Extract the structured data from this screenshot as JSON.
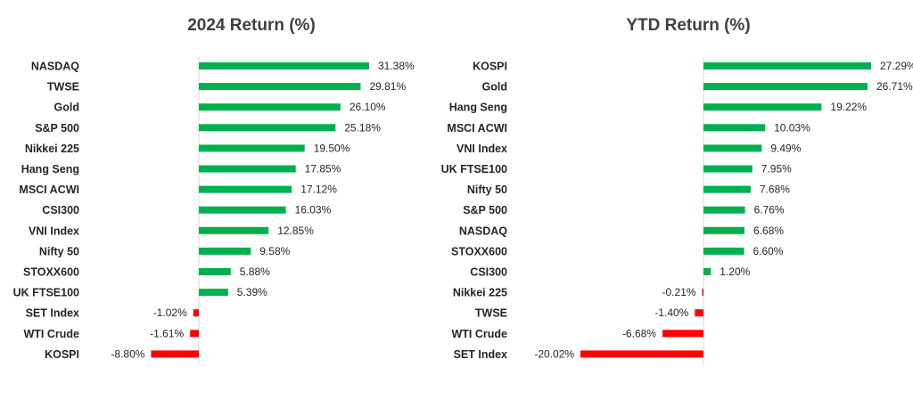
{
  "colors": {
    "positive": "#00b050",
    "negative": "#ff0000"
  },
  "chart_data": [
    {
      "type": "bar",
      "orientation": "horizontal",
      "title": "2024 Return (%)",
      "categories": [
        "NASDAQ",
        "TWSE",
        "Gold",
        "S&P 500",
        "Nikkei 225",
        "Hang Seng",
        "MSCI ACWI",
        "CSI300",
        "VNI Index",
        "Nifty 50",
        "STOXX600",
        "UK FTSE100",
        "SET Index",
        "WTI Crude",
        "KOSPI"
      ],
      "values": [
        31.38,
        29.81,
        26.1,
        25.18,
        19.5,
        17.85,
        17.12,
        16.03,
        12.85,
        9.58,
        5.88,
        5.39,
        -1.02,
        -1.61,
        -8.8
      ],
      "labels": [
        "31.38%",
        "29.81%",
        "26.10%",
        "25.18%",
        "19.50%",
        "17.85%",
        "17.12%",
        "16.03%",
        "12.85%",
        "9.58%",
        "5.88%",
        "5.39%",
        "-1.02%",
        "-1.61%",
        "-8.80%"
      ],
      "grid": false,
      "legend": "none"
    },
    {
      "type": "bar",
      "orientation": "horizontal",
      "title": "YTD Return (%)",
      "categories": [
        "KOSPI",
        "Gold",
        "Hang Seng",
        "MSCI ACWI",
        "VNI Index",
        "UK FTSE100",
        "Nifty 50",
        "S&P 500",
        "NASDAQ",
        "STOXX600",
        "CSI300",
        "Nikkei 225",
        "TWSE",
        "WTI Crude",
        "SET Index"
      ],
      "values": [
        27.29,
        26.71,
        19.22,
        10.03,
        9.49,
        7.95,
        7.68,
        6.76,
        6.68,
        6.6,
        1.2,
        -0.21,
        -1.4,
        -6.68,
        -20.02
      ],
      "labels": [
        "27.29%",
        "26.71%",
        "19.22%",
        "10.03%",
        "9.49%",
        "7.95%",
        "7.68%",
        "6.76%",
        "6.68%",
        "6.60%",
        "1.20%",
        "-0.21%",
        "-1.40%",
        "-6.68%",
        "-20.02%"
      ],
      "grid": false,
      "legend": "none"
    }
  ]
}
